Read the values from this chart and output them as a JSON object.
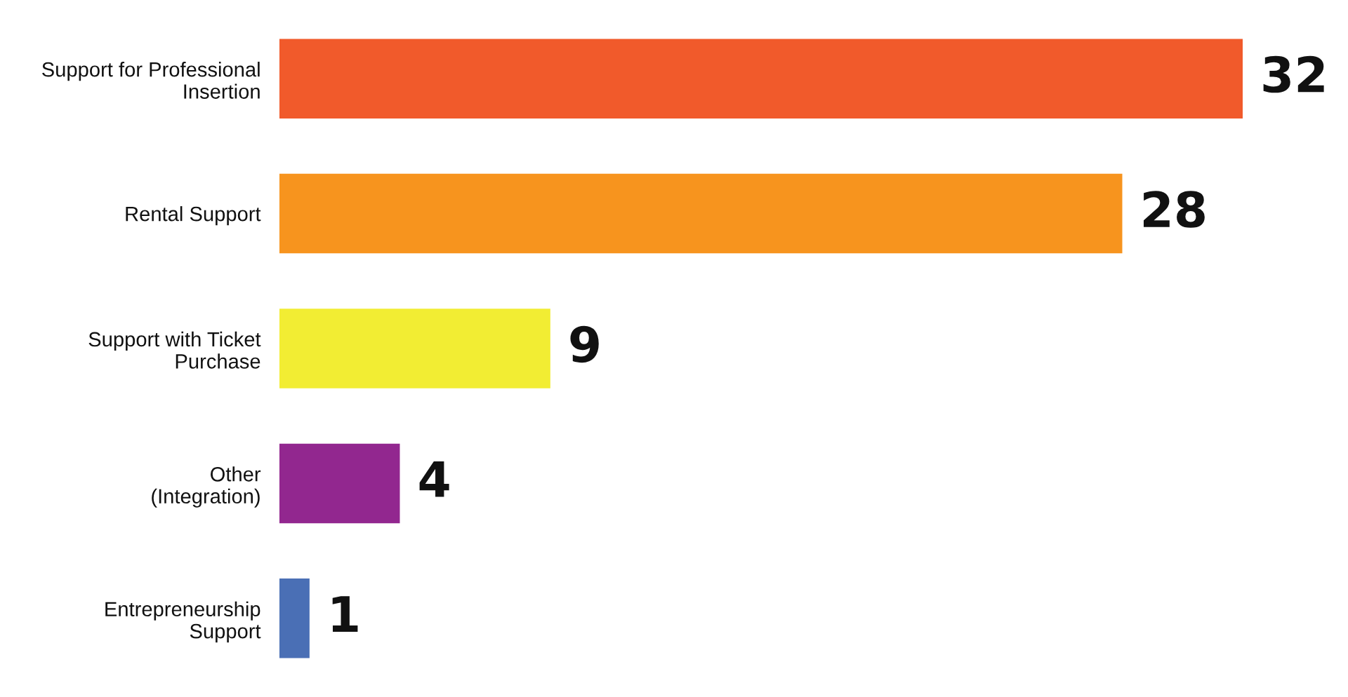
{
  "chart_data": {
    "type": "bar",
    "orientation": "horizontal",
    "categories": [
      "Support for Professional\nInsertion",
      "Rental Support",
      "Support with Ticket\nPurchase",
      "Other\n(Integration)",
      "Entrepreneurship\nSupport"
    ],
    "values": [
      32,
      28,
      9,
      4,
      1
    ],
    "colors": [
      "#f15a2b",
      "#f7941e",
      "#f2ed33",
      "#92278f",
      "#4a6fb5"
    ],
    "data_labels": true
  }
}
